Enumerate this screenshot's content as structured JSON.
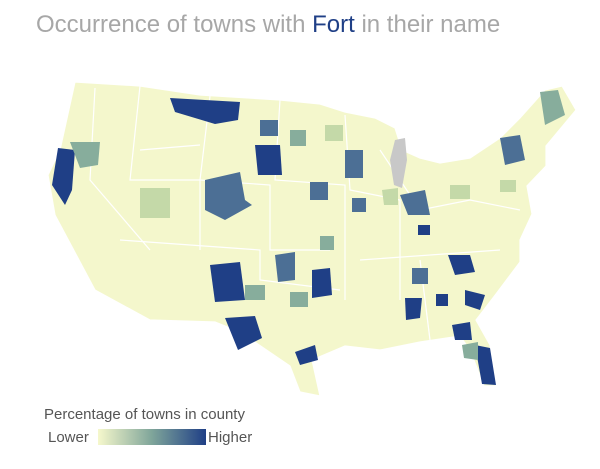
{
  "title": {
    "prefix": "Occurrence of towns with",
    "highlight": "Fort",
    "suffix": "in their name"
  },
  "legend": {
    "title": "Percentage of towns in county",
    "low": "Lower",
    "high": "Higher"
  }
}
